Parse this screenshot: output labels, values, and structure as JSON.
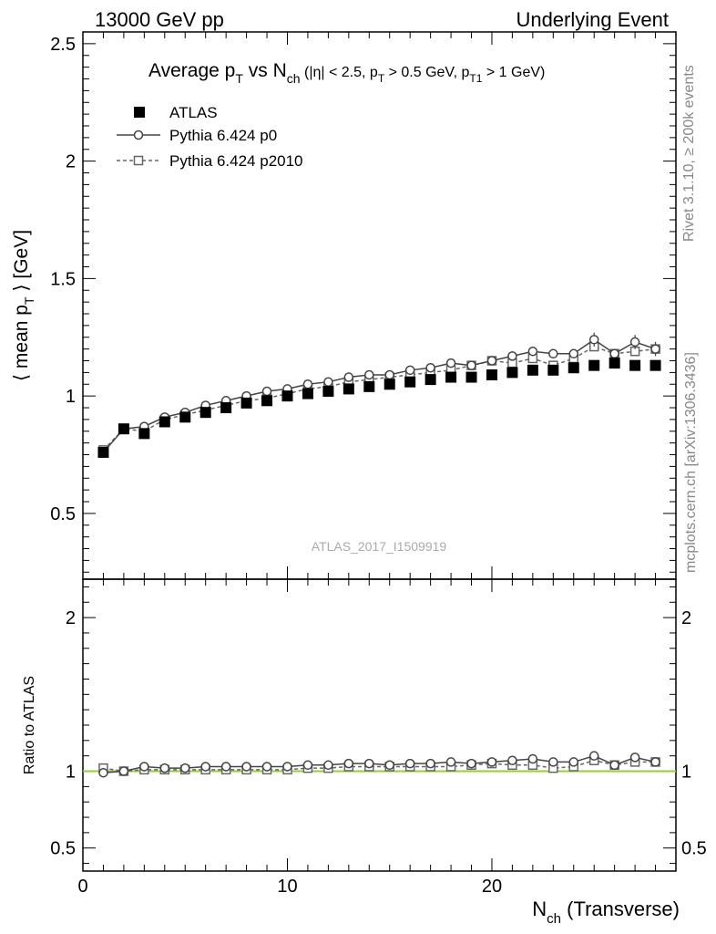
{
  "header": {
    "left": "13000 GeV pp",
    "right": "Underlying Event"
  },
  "side_labels": {
    "rivet": "Rivet 3.1.10, ≥ 200k events",
    "mcplots": "mcplots.cern.ch [arXiv:1306.3436]"
  },
  "watermark": "ATLAS_2017_I1509919",
  "chart_data": [
    {
      "panel": "main",
      "type": "scatter",
      "title_parts": {
        "main": "Average p",
        "main_sub": "T",
        "vs": " vs N",
        "vs_sub": "ch",
        "cuts_a": " (|η| < 2.5, p",
        "cuts_a_sub": "T",
        "cuts_b": " > 0.5 GeV, p",
        "cuts_b_sub": "T1",
        "cuts_c": " > 1 GeV)"
      },
      "ylabel_parts": {
        "a": "⟨ mean p",
        "sub": "T",
        "b": " ⟩ [GeV]"
      },
      "xlim": [
        0,
        29
      ],
      "ylim": [
        0.22,
        2.55
      ],
      "y_ticks": [
        0.5,
        1,
        1.5,
        2,
        2.5
      ],
      "y_tick_labels": [
        "0.5",
        "1",
        "1.5",
        "2",
        "2.5"
      ],
      "legend_position": "top-left",
      "series": [
        {
          "name": "ATLAS",
          "marker": "filled-square",
          "line": "none",
          "color": "#000000",
          "x": [
            1,
            2,
            3,
            4,
            5,
            6,
            7,
            8,
            9,
            10,
            11,
            12,
            13,
            14,
            15,
            16,
            17,
            18,
            19,
            20,
            21,
            22,
            23,
            24,
            25,
            26,
            27,
            28
          ],
          "values": [
            0.76,
            0.86,
            0.84,
            0.89,
            0.91,
            0.93,
            0.95,
            0.97,
            0.98,
            1.0,
            1.01,
            1.02,
            1.03,
            1.04,
            1.05,
            1.06,
            1.07,
            1.08,
            1.08,
            1.09,
            1.1,
            1.11,
            1.11,
            1.12,
            1.13,
            1.14,
            1.13,
            1.13
          ]
        },
        {
          "name": "Pythia 6.424 p0",
          "marker": "open-circle",
          "line": "solid",
          "color": "#444444",
          "x": [
            1,
            2,
            3,
            4,
            5,
            6,
            7,
            8,
            9,
            10,
            11,
            12,
            13,
            14,
            15,
            16,
            17,
            18,
            19,
            20,
            21,
            22,
            23,
            24,
            25,
            26,
            27,
            28
          ],
          "values": [
            0.76,
            0.86,
            0.87,
            0.91,
            0.93,
            0.96,
            0.98,
            1.0,
            1.02,
            1.03,
            1.05,
            1.06,
            1.08,
            1.09,
            1.09,
            1.11,
            1.12,
            1.14,
            1.13,
            1.15,
            1.17,
            1.19,
            1.18,
            1.18,
            1.24,
            1.18,
            1.23,
            1.2
          ],
          "errors": [
            0.01,
            0.01,
            0.01,
            0.01,
            0.01,
            0.01,
            0.01,
            0.01,
            0.01,
            0.01,
            0.01,
            0.01,
            0.01,
            0.01,
            0.01,
            0.01,
            0.01,
            0.01,
            0.01,
            0.01,
            0.01,
            0.01,
            0.01,
            0.015,
            0.03,
            0.015,
            0.03,
            0.03
          ]
        },
        {
          "name": "Pythia 6.424 p2010",
          "marker": "open-square",
          "line": "dashed",
          "color": "#666666",
          "x": [
            1,
            2,
            3,
            4,
            5,
            6,
            7,
            8,
            9,
            10,
            11,
            12,
            13,
            14,
            15,
            16,
            17,
            18,
            19,
            20,
            21,
            22,
            23,
            24,
            25,
            26,
            27,
            28
          ],
          "values": [
            0.77,
            0.86,
            0.85,
            0.9,
            0.92,
            0.94,
            0.96,
            0.98,
            0.99,
            1.01,
            1.03,
            1.04,
            1.06,
            1.07,
            1.08,
            1.09,
            1.1,
            1.11,
            1.13,
            1.15,
            1.14,
            1.16,
            1.13,
            1.16,
            1.21,
            1.18,
            1.19,
            1.2
          ],
          "errors": [
            0.01,
            0.01,
            0.01,
            0.01,
            0.01,
            0.01,
            0.01,
            0.01,
            0.01,
            0.01,
            0.01,
            0.01,
            0.01,
            0.01,
            0.01,
            0.01,
            0.01,
            0.01,
            0.01,
            0.01,
            0.01,
            0.01,
            0.01,
            0.015,
            0.02,
            0.015,
            0.02,
            0.025
          ]
        }
      ]
    },
    {
      "panel": "ratio",
      "type": "line",
      "ylabel": "Ratio to ATLAS",
      "xlabel_parts": {
        "a": "N",
        "sub": "ch",
        "b": " (Transverse)"
      },
      "xlim": [
        0,
        29
      ],
      "ylim": [
        0.35,
        2.25
      ],
      "x_ticks": [
        0,
        10,
        20
      ],
      "x_tick_labels": [
        "0",
        "10",
        "20"
      ],
      "y_ticks": [
        0.5,
        1,
        2
      ],
      "y_tick_labels": [
        "0.5",
        "1",
        "2"
      ],
      "reference_line": {
        "value": 1,
        "color": "#9acd32"
      },
      "series": [
        {
          "name": "Pythia 6.424 p0",
          "marker": "open-circle",
          "line": "solid",
          "color": "#444444",
          "x": [
            1,
            2,
            3,
            4,
            5,
            6,
            7,
            8,
            9,
            10,
            11,
            12,
            13,
            14,
            15,
            16,
            17,
            18,
            19,
            20,
            21,
            22,
            23,
            24,
            25,
            26,
            27,
            28
          ],
          "values": [
            0.99,
            1.0,
            1.03,
            1.02,
            1.02,
            1.03,
            1.03,
            1.03,
            1.03,
            1.03,
            1.04,
            1.04,
            1.05,
            1.05,
            1.04,
            1.05,
            1.05,
            1.06,
            1.05,
            1.06,
            1.07,
            1.08,
            1.06,
            1.06,
            1.1,
            1.04,
            1.09,
            1.06
          ]
        },
        {
          "name": "Pythia 6.424 p2010",
          "marker": "open-square",
          "line": "dashed",
          "color": "#666666",
          "x": [
            1,
            2,
            3,
            4,
            5,
            6,
            7,
            8,
            9,
            10,
            11,
            12,
            13,
            14,
            15,
            16,
            17,
            18,
            19,
            20,
            21,
            22,
            23,
            24,
            25,
            26,
            27,
            28
          ],
          "values": [
            1.02,
            1.0,
            1.01,
            1.01,
            1.01,
            1.01,
            1.01,
            1.01,
            1.01,
            1.01,
            1.02,
            1.02,
            1.03,
            1.03,
            1.03,
            1.03,
            1.03,
            1.03,
            1.04,
            1.05,
            1.04,
            1.04,
            1.02,
            1.03,
            1.07,
            1.04,
            1.06,
            1.06
          ]
        }
      ]
    }
  ]
}
